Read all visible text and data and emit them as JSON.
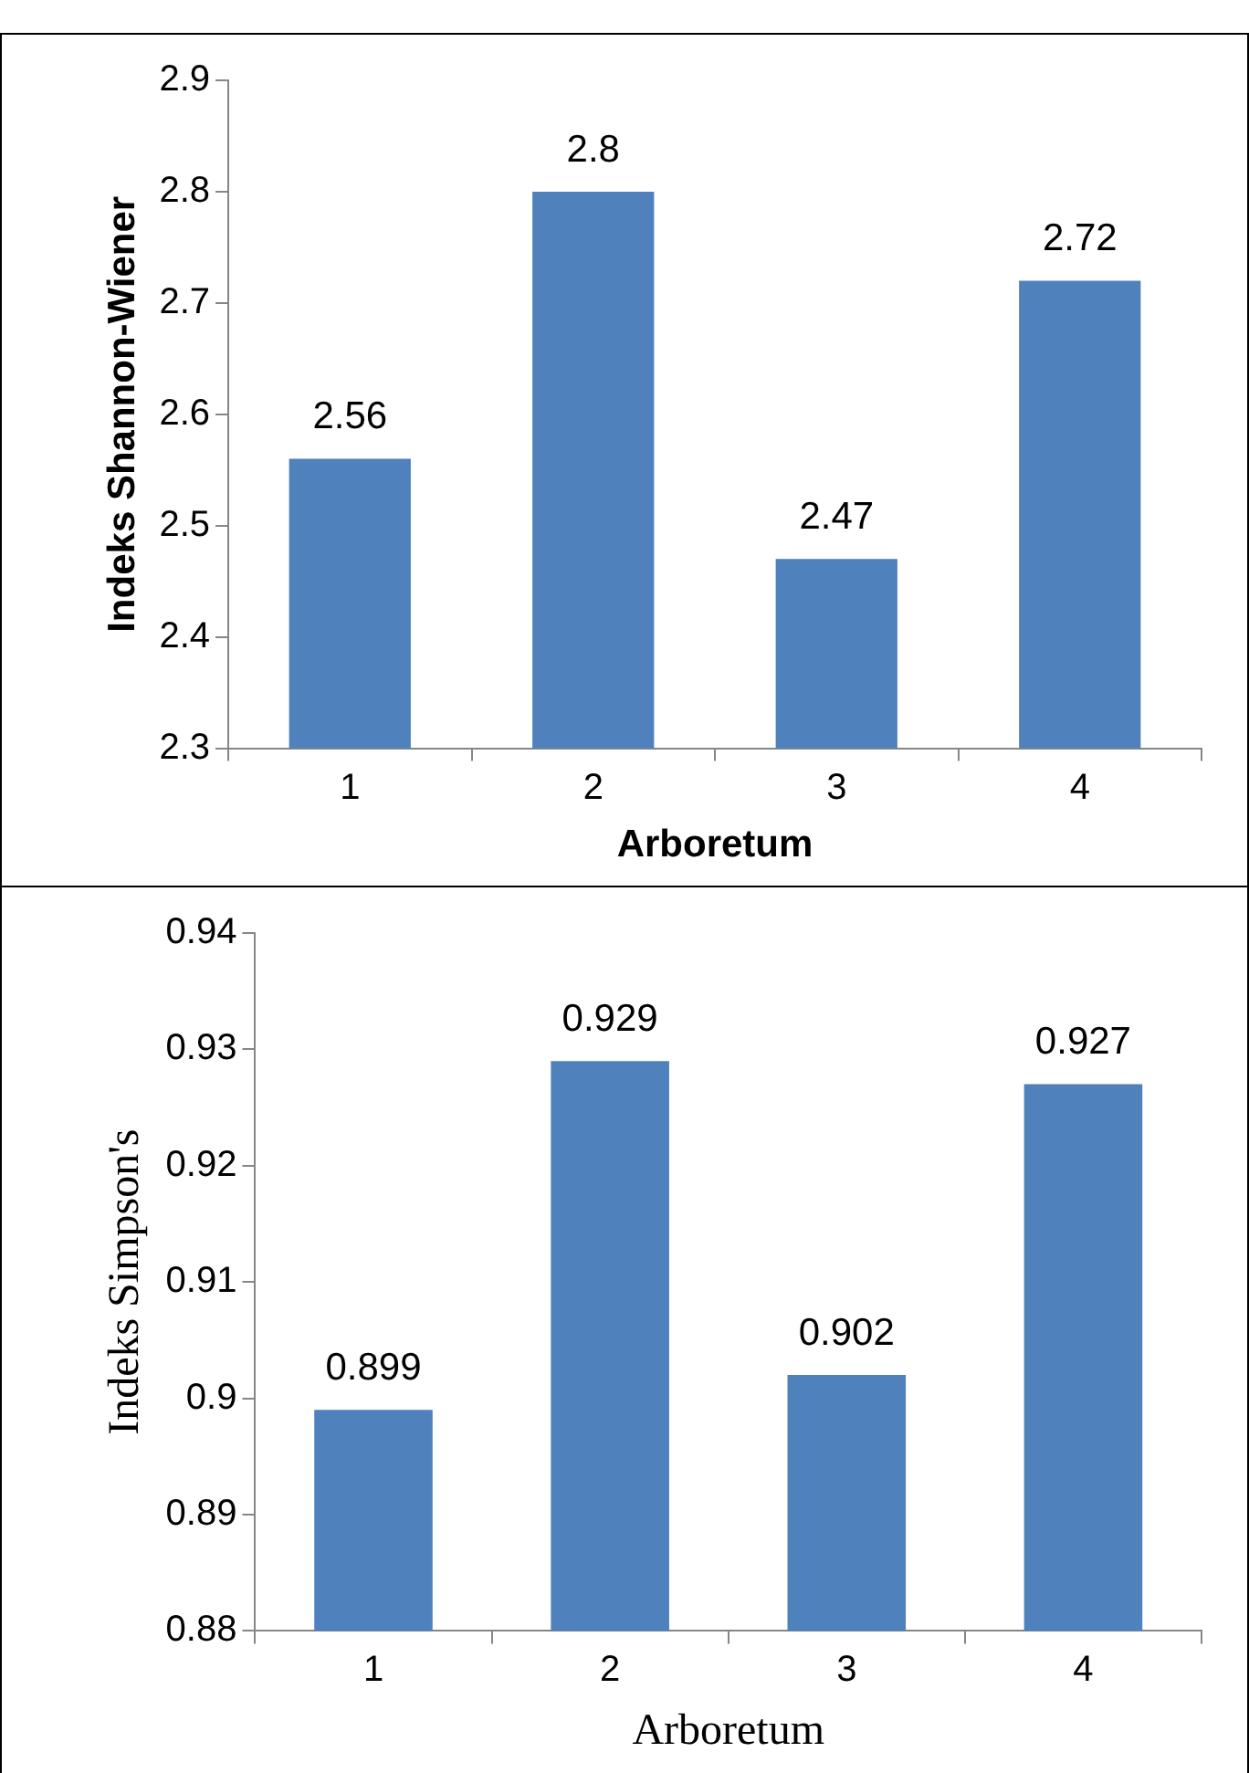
{
  "chart_data": [
    {
      "type": "bar",
      "xlabel": "Arboretum",
      "ylabel": "Indeks Shannon-Wiener",
      "categories": [
        "1",
        "2",
        "3",
        "4"
      ],
      "series": [
        {
          "color": "#4f81bd",
          "values": [
            2.56,
            2.8,
            2.47,
            2.72
          ]
        }
      ],
      "ylim": [
        2.3,
        2.9
      ],
      "yticks": [
        2.3,
        2.4,
        2.5,
        2.6,
        2.7,
        2.8,
        2.9
      ],
      "grid": false,
      "legend": false,
      "data_labels": true
    },
    {
      "type": "bar",
      "xlabel": "Arboretum",
      "ylabel": "Indeks Simpson's",
      "categories": [
        "1",
        "2",
        "3",
        "4"
      ],
      "series": [
        {
          "color": "#4f81bd",
          "values": [
            0.899,
            0.929,
            0.902,
            0.927
          ]
        }
      ],
      "ylim": [
        0.88,
        0.94
      ],
      "yticks": [
        0.88,
        0.89,
        0.9,
        0.91,
        0.92,
        0.93,
        0.94
      ],
      "grid": false,
      "legend": false,
      "data_labels": true
    }
  ]
}
